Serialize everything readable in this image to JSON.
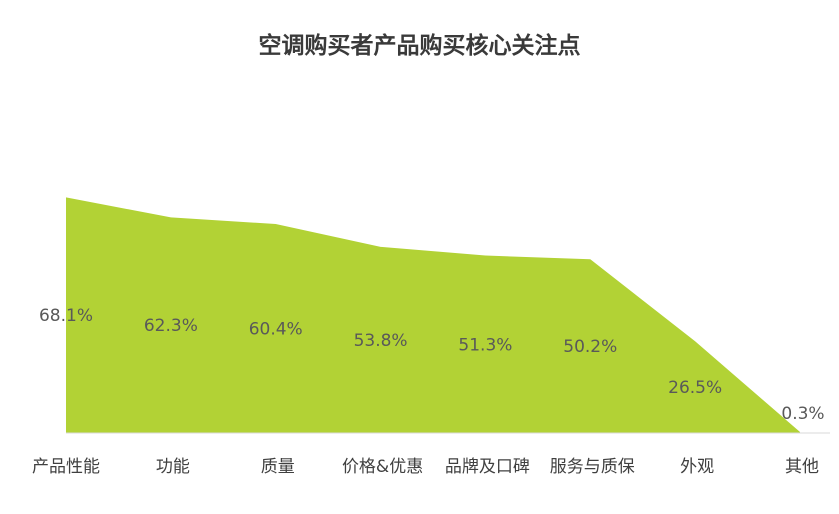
{
  "chart_data": {
    "type": "area",
    "title": "空调购买者产品购买核心关注点",
    "categories": [
      "产品性能",
      "功能",
      "质量",
      "价格&优惠",
      "品牌及口碑",
      "服务与质保",
      "外观",
      "其他"
    ],
    "values": [
      68.1,
      62.3,
      60.4,
      53.8,
      51.3,
      50.2,
      26.5,
      0.3
    ],
    "data_labels": [
      "68.1%",
      "62.3%",
      "60.4%",
      "53.8%",
      "51.3%",
      "50.2%",
      "26.5%",
      "0.3%"
    ],
    "ylim": [
      0,
      100
    ],
    "grid": false,
    "legend": "none",
    "colors": {
      "area": "#b2d235",
      "baseline": "#d9d9d9"
    }
  }
}
